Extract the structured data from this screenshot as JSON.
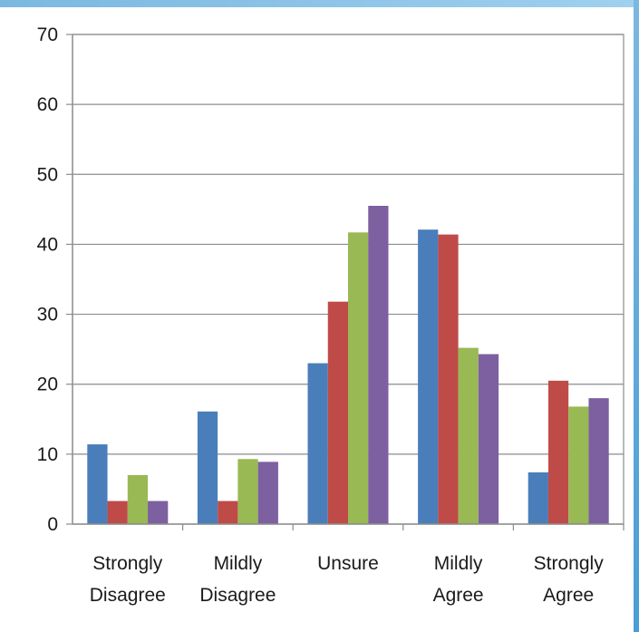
{
  "chart_data": {
    "type": "bar",
    "title": "",
    "xlabel": "",
    "ylabel": "",
    "ylim": [
      0,
      70
    ],
    "yticks": [
      0,
      10,
      20,
      30,
      40,
      50,
      60,
      70
    ],
    "grid": true,
    "legend": "none",
    "categories": [
      [
        "Strongly",
        "Disagree"
      ],
      [
        "Mildly",
        "Disagree"
      ],
      [
        "Unsure"
      ],
      [
        "Mildly",
        "Agree"
      ],
      [
        "Strongly",
        "Agree"
      ]
    ],
    "series": [
      {
        "color": "#4a7ebb",
        "values": [
          11.4,
          16.1,
          23.0,
          42.1,
          7.4
        ]
      },
      {
        "color": "#be4b48",
        "values": [
          3.3,
          3.3,
          31.8,
          41.4,
          20.5
        ]
      },
      {
        "color": "#98b954",
        "values": [
          7.0,
          9.3,
          41.7,
          25.2,
          16.8
        ]
      },
      {
        "color": "#7d60a0",
        "values": [
          3.3,
          8.9,
          45.5,
          24.3,
          18.0
        ]
      }
    ]
  }
}
